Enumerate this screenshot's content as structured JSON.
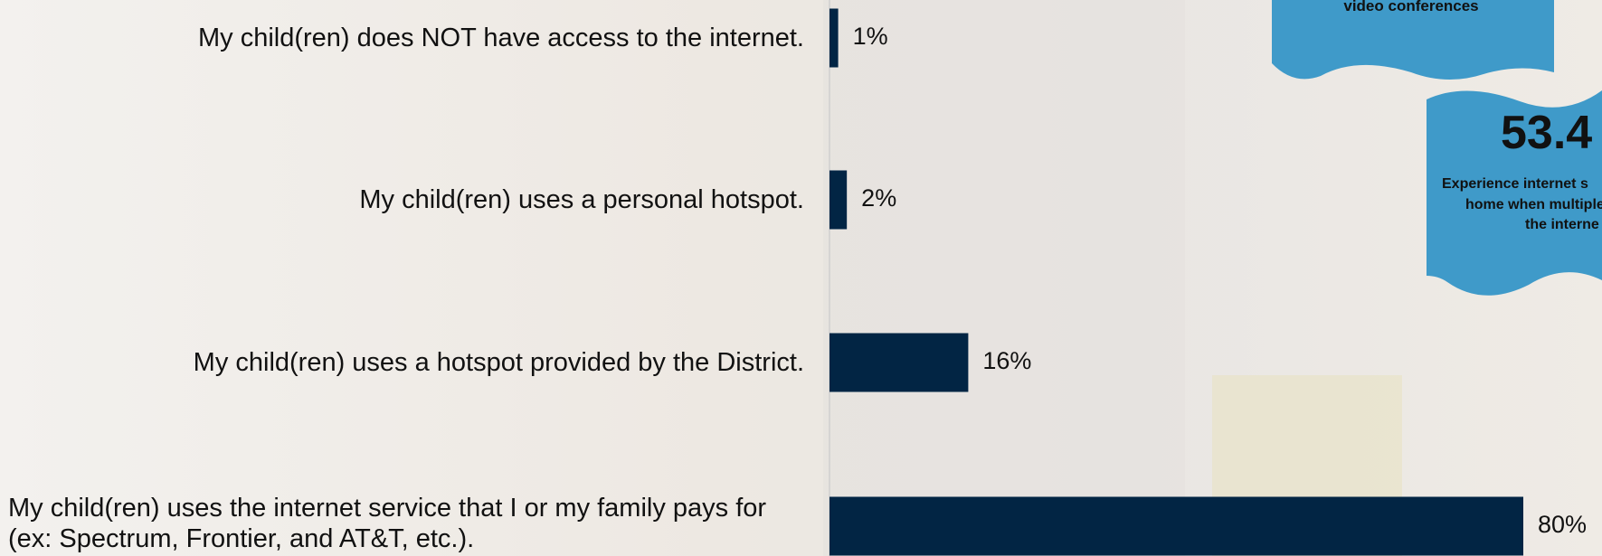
{
  "chart_data": {
    "type": "bar",
    "orientation": "horizontal",
    "categories": [
      "My child(ren) does NOT have access to the internet.",
      "My child(ren) uses a personal hotspot.",
      "My child(ren) uses a hotspot provided by the District.",
      "My child(ren) uses the internet service that I or my family pays for (ex: Spectrum, Frontier, and AT&T, etc.)."
    ],
    "values": [
      1,
      2,
      16,
      80
    ],
    "value_labels": [
      "1%",
      "2%",
      "16%",
      "80%"
    ],
    "color": "#022544",
    "xlim": [
      0,
      80
    ]
  },
  "callouts": [
    {
      "lines": [
        "video conferences"
      ]
    },
    {
      "value": "53.4",
      "lines": [
        "Experience internet s",
        "home when multiple",
        "the interne"
      ]
    }
  ]
}
